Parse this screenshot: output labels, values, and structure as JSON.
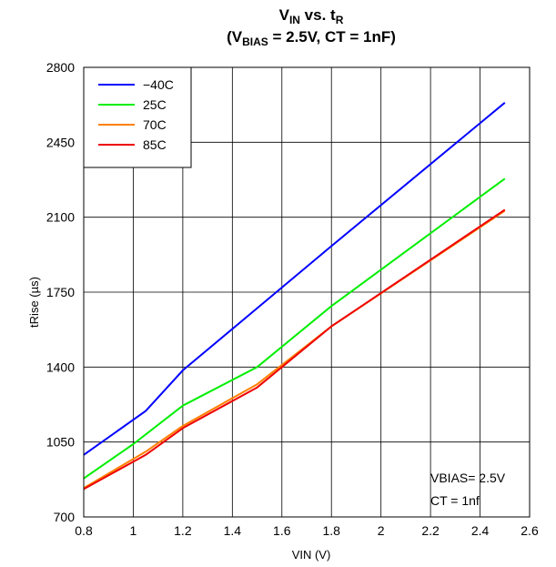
{
  "chart_data": {
    "type": "line",
    "title": {
      "line1_main": "V",
      "line1_sub1": "IN",
      "line1_mid": " vs. t",
      "line1_sub2": "R",
      "line2_pre": "(V",
      "line2_sub": "BIAS",
      "line2_post": " = 2.5V, CT = 1nF)"
    },
    "xlabel": "VIN (V)",
    "ylabel": "tRise (µs)",
    "xlim": [
      0.8,
      2.6
    ],
    "ylim": [
      700,
      2800
    ],
    "xticks": [
      "0.8",
      "1",
      "1.2",
      "1.4",
      "1.6",
      "1.8",
      "2",
      "2.2",
      "2.4",
      "2.6"
    ],
    "xtick_values": [
      0.8,
      1.0,
      1.2,
      1.4,
      1.6,
      1.8,
      2.0,
      2.2,
      2.4,
      2.6
    ],
    "yticks": [
      "700",
      "1050",
      "1400",
      "1750",
      "2100",
      "2450",
      "2800"
    ],
    "ytick_values": [
      700,
      1050,
      1400,
      1750,
      2100,
      2450,
      2800
    ],
    "grid": true,
    "legend_position": "top-left",
    "series": [
      {
        "name": "−40C",
        "color": "#0000ff",
        "x": [
          0.8,
          1.05,
          1.2,
          1.5,
          1.8,
          2.5
        ],
        "y": [
          990,
          1195,
          1385,
          1675,
          1965,
          2635
        ]
      },
      {
        "name": "25C",
        "color": "#00ee00",
        "x": [
          0.8,
          1.0,
          1.2,
          1.5,
          1.8,
          2.5
        ],
        "y": [
          880,
          1040,
          1220,
          1400,
          1685,
          2280
        ]
      },
      {
        "name": "70C",
        "color": "#ff8000",
        "x": [
          0.8,
          1.05,
          1.2,
          1.5,
          1.8,
          2.5
        ],
        "y": [
          835,
          1005,
          1125,
          1320,
          1590,
          2130
        ]
      },
      {
        "name": "85C",
        "color": "#ee0000",
        "x": [
          0.8,
          1.05,
          1.2,
          1.5,
          1.8,
          2.5
        ],
        "y": [
          830,
          990,
          1115,
          1305,
          1590,
          2135
        ]
      }
    ],
    "annotations": [
      "VBIAS= 2.5V",
      "CT = 1nf"
    ]
  }
}
